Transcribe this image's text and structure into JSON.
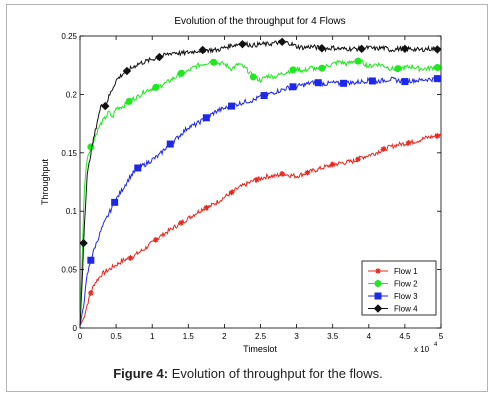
{
  "caption": {
    "label": "Figure 4:",
    "text": "Evolution of throughput for the flows."
  },
  "chart_data": {
    "type": "line",
    "title": "Evolution of the throughput for 4 Flows",
    "xlabel": "Timeslot",
    "ylabel": "Throughput",
    "x_multiplier_label": "x 10",
    "x_multiplier_exponent": "4",
    "xlim": [
      0,
      5
    ],
    "ylim": [
      0,
      0.25
    ],
    "xticks": [
      "0",
      "0.5",
      "1",
      "1.5",
      "2",
      "2.5",
      "3",
      "3.5",
      "4",
      "4.5",
      "5"
    ],
    "yticks": [
      "0",
      "0.05",
      "0.1",
      "0.15",
      "0.2",
      "0.25"
    ],
    "grid": false,
    "legend_position": "bottom-right",
    "series": [
      {
        "name": "Flow 1",
        "color": "#e8281e",
        "marker": "star",
        "x": [
          0,
          0.05,
          0.1,
          0.15,
          0.2,
          0.3,
          0.4,
          0.5,
          0.6,
          0.7,
          0.8,
          0.9,
          1.0,
          1.1,
          1.2,
          1.3,
          1.4,
          1.5,
          1.6,
          1.7,
          1.8,
          1.9,
          2.0,
          2.1,
          2.2,
          2.3,
          2.4,
          2.5,
          2.6,
          2.7,
          2.8,
          2.9,
          3.0,
          3.1,
          3.2,
          3.3,
          3.4,
          3.5,
          3.6,
          3.7,
          3.8,
          3.9,
          4.0,
          4.1,
          4.2,
          4.3,
          4.4,
          4.5,
          4.6,
          4.7,
          4.8,
          4.9,
          5.0
        ],
        "y": [
          0.002,
          0.008,
          0.02,
          0.03,
          0.038,
          0.046,
          0.05,
          0.054,
          0.058,
          0.06,
          0.064,
          0.068,
          0.073,
          0.078,
          0.082,
          0.086,
          0.09,
          0.094,
          0.098,
          0.102,
          0.104,
          0.108,
          0.112,
          0.116,
          0.12,
          0.123,
          0.126,
          0.128,
          0.13,
          0.13,
          0.132,
          0.131,
          0.13,
          0.132,
          0.134,
          0.136,
          0.138,
          0.14,
          0.141,
          0.142,
          0.143,
          0.146,
          0.148,
          0.15,
          0.153,
          0.155,
          0.157,
          0.158,
          0.159,
          0.161,
          0.163,
          0.164,
          0.165
        ],
        "marker_x": [
          0.15,
          0.7,
          1.05,
          1.4,
          1.75,
          2.1,
          2.45,
          2.8,
          3.15,
          3.5,
          3.85,
          4.2,
          4.55,
          4.95
        ]
      },
      {
        "name": "Flow 2",
        "color": "#1ee81e",
        "marker": "circle",
        "x": [
          0,
          0.03,
          0.06,
          0.1,
          0.15,
          0.2,
          0.25,
          0.3,
          0.35,
          0.4,
          0.45,
          0.5,
          0.6,
          0.7,
          0.8,
          0.9,
          1.0,
          1.1,
          1.2,
          1.3,
          1.4,
          1.5,
          1.6,
          1.7,
          1.8,
          1.9,
          2.0,
          2.1,
          2.2,
          2.3,
          2.4,
          2.5,
          2.6,
          2.7,
          2.8,
          2.9,
          3.0,
          3.1,
          3.2,
          3.3,
          3.4,
          3.5,
          3.6,
          3.7,
          3.8,
          3.9,
          4.0,
          4.1,
          4.2,
          4.3,
          4.4,
          4.5,
          4.6,
          4.7,
          4.8,
          4.9,
          5.0
        ],
        "y": [
          0.002,
          0.06,
          0.12,
          0.146,
          0.155,
          0.162,
          0.17,
          0.176,
          0.18,
          0.185,
          0.18,
          0.188,
          0.19,
          0.195,
          0.198,
          0.203,
          0.205,
          0.207,
          0.21,
          0.214,
          0.218,
          0.22,
          0.224,
          0.226,
          0.228,
          0.227,
          0.226,
          0.222,
          0.226,
          0.222,
          0.215,
          0.212,
          0.216,
          0.215,
          0.218,
          0.22,
          0.222,
          0.22,
          0.223,
          0.221,
          0.224,
          0.226,
          0.228,
          0.226,
          0.229,
          0.228,
          0.224,
          0.226,
          0.225,
          0.222,
          0.222,
          0.223,
          0.224,
          0.222,
          0.222,
          0.223,
          0.223
        ],
        "marker_x": [
          0.15,
          0.68,
          1.05,
          1.4,
          1.85,
          2.4,
          2.95,
          3.35,
          3.85,
          4.4,
          4.95
        ]
      },
      {
        "name": "Flow 3",
        "color": "#1e28e8",
        "marker": "square",
        "x": [
          0,
          0.05,
          0.1,
          0.15,
          0.2,
          0.3,
          0.4,
          0.5,
          0.6,
          0.7,
          0.8,
          0.9,
          1.0,
          1.1,
          1.2,
          1.3,
          1.4,
          1.5,
          1.6,
          1.7,
          1.8,
          1.9,
          2.0,
          2.1,
          2.2,
          2.3,
          2.4,
          2.5,
          2.6,
          2.7,
          2.8,
          2.9,
          3.0,
          3.1,
          3.2,
          3.3,
          3.4,
          3.5,
          3.6,
          3.7,
          3.8,
          3.9,
          4.0,
          4.1,
          4.2,
          4.3,
          4.4,
          4.5,
          4.6,
          4.7,
          4.8,
          4.9,
          5.0
        ],
        "y": [
          0.002,
          0.02,
          0.045,
          0.058,
          0.068,
          0.085,
          0.098,
          0.11,
          0.12,
          0.13,
          0.137,
          0.14,
          0.144,
          0.148,
          0.155,
          0.16,
          0.166,
          0.172,
          0.174,
          0.178,
          0.182,
          0.186,
          0.188,
          0.19,
          0.192,
          0.194,
          0.195,
          0.198,
          0.2,
          0.202,
          0.204,
          0.206,
          0.207,
          0.208,
          0.21,
          0.21,
          0.209,
          0.21,
          0.209,
          0.21,
          0.21,
          0.211,
          0.212,
          0.211,
          0.212,
          0.213,
          0.212,
          0.211,
          0.212,
          0.212,
          0.213,
          0.213,
          0.214
        ],
        "marker_x": [
          0.15,
          0.48,
          0.8,
          1.25,
          1.75,
          2.1,
          2.55,
          2.95,
          3.3,
          3.65,
          4.05,
          4.5,
          4.95
        ]
      },
      {
        "name": "Flow 4",
        "color": "#111111",
        "marker": "diamond",
        "x": [
          0,
          0.03,
          0.06,
          0.1,
          0.15,
          0.2,
          0.25,
          0.3,
          0.35,
          0.4,
          0.45,
          0.5,
          0.55,
          0.6,
          0.7,
          0.8,
          0.9,
          1.0,
          1.1,
          1.2,
          1.3,
          1.4,
          1.5,
          1.6,
          1.7,
          1.8,
          1.9,
          2.0,
          2.1,
          2.2,
          2.3,
          2.4,
          2.5,
          2.6,
          2.7,
          2.8,
          2.9,
          3.0,
          3.1,
          3.2,
          3.3,
          3.4,
          3.5,
          3.6,
          3.7,
          3.8,
          3.9,
          4.0,
          4.1,
          4.2,
          4.3,
          4.4,
          4.5,
          4.6,
          4.7,
          4.8,
          4.9,
          5.0
        ],
        "y": [
          0.002,
          0.04,
          0.089,
          0.13,
          0.15,
          0.165,
          0.18,
          0.192,
          0.19,
          0.198,
          0.205,
          0.212,
          0.215,
          0.218,
          0.222,
          0.226,
          0.228,
          0.23,
          0.232,
          0.234,
          0.236,
          0.235,
          0.236,
          0.237,
          0.238,
          0.238,
          0.238,
          0.24,
          0.242,
          0.243,
          0.243,
          0.242,
          0.243,
          0.243,
          0.244,
          0.245,
          0.244,
          0.241,
          0.24,
          0.241,
          0.24,
          0.239,
          0.24,
          0.239,
          0.239,
          0.239,
          0.239,
          0.24,
          0.239,
          0.24,
          0.238,
          0.239,
          0.239,
          0.239,
          0.238,
          0.239,
          0.239,
          0.238
        ],
        "marker_x": [
          0.05,
          0.35,
          0.65,
          1.1,
          1.7,
          2.25,
          2.8,
          3.35,
          3.9,
          4.5,
          4.95
        ]
      }
    ]
  }
}
